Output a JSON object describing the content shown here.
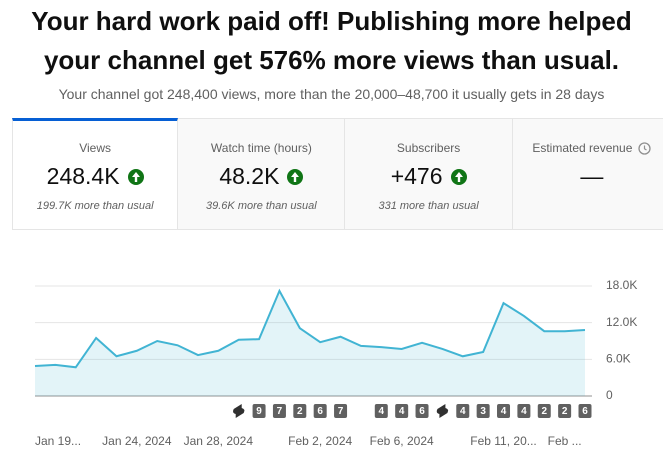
{
  "header": {
    "title_line1": "Your hard work paid off! Publishing more helped",
    "title_line2": "your channel get 576% more views than usual.",
    "subtitle": "Your channel got 248,400 views, more than the 20,000–48,700 it usually gets in 28 days"
  },
  "tabs": [
    {
      "label": "Views",
      "value": "248.4K",
      "note": "199.7K more than usual"
    },
    {
      "label": "Watch time (hours)",
      "value": "48.2K",
      "note": "39.6K more than usual"
    },
    {
      "label": "Subscribers",
      "value": "+476",
      "note": "331 more than usual"
    },
    {
      "label": "Estimated revenue",
      "value": "—"
    }
  ],
  "chart_data": {
    "type": "line",
    "categories": [
      "Jan 19...",
      null,
      null,
      null,
      null,
      "Jan 24, 2024",
      null,
      null,
      null,
      "Jan 28, 2024",
      null,
      null,
      null,
      null,
      "Feb 2, 2024",
      null,
      null,
      null,
      "Feb 6, 2024",
      null,
      null,
      null,
      null,
      "Feb 11, 20...",
      null,
      null,
      "Feb ...",
      null
    ],
    "values": [
      4900,
      5100,
      4700,
      9500,
      6500,
      7400,
      9000,
      8300,
      6700,
      7400,
      9200,
      9300,
      17200,
      11100,
      8800,
      9700,
      8200,
      8000,
      7700,
      8700,
      7700,
      6500,
      7200,
      15200,
      13100,
      10600,
      10600,
      10800
    ],
    "color": "#41b4d3",
    "ylim": [
      0,
      18000
    ],
    "yticks": [
      0,
      {
        "value": 6000,
        "label": "6.0K"
      },
      {
        "value": 12000,
        "label": "12.0K"
      },
      {
        "value": 18000,
        "label": "18.0K"
      }
    ],
    "grid": true,
    "uploads": [
      null,
      null,
      null,
      null,
      null,
      null,
      null,
      null,
      null,
      null,
      null,
      9,
      7,
      2,
      6,
      7,
      null,
      4,
      4,
      6,
      null,
      4,
      3,
      4,
      4,
      2,
      2,
      6
    ]
  }
}
